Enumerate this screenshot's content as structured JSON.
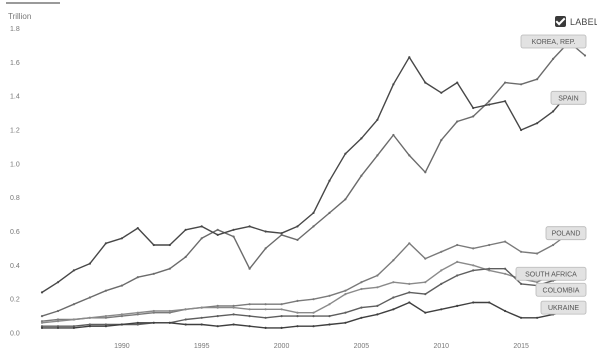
{
  "ui": {
    "unit_label": "Trillion",
    "label_toggle": {
      "text": "LABEL",
      "checked": true
    }
  },
  "chart_data": {
    "type": "line",
    "title": "",
    "xlabel": "",
    "ylabel": "",
    "xlim": [
      1985,
      2019
    ],
    "ylim": [
      0,
      1.85
    ],
    "grid": false,
    "y_ticks": [
      0.0,
      0.2,
      0.4,
      0.6,
      0.8,
      1.0,
      1.2,
      1.4,
      1.6,
      1.8
    ],
    "y_tick_labels": [
      "0.0",
      "0.2",
      "0.4",
      "0.6",
      "0.8",
      "1.0",
      "1.2",
      "1.4",
      "1.6",
      "1.8"
    ],
    "x_ticks": [
      1990,
      1995,
      2000,
      2005,
      2010,
      2015
    ],
    "x_tick_labels": [
      "1990",
      "1995",
      "2000",
      "2005",
      "2010",
      "2015"
    ],
    "x": [
      1985,
      1986,
      1987,
      1988,
      1989,
      1990,
      1991,
      1992,
      1993,
      1994,
      1995,
      1996,
      1997,
      1998,
      1999,
      2000,
      2001,
      2002,
      2003,
      2004,
      2005,
      2006,
      2007,
      2008,
      2009,
      2010,
      2011,
      2012,
      2013,
      2014,
      2015,
      2016,
      2017,
      2018,
      2019
    ],
    "series": [
      {
        "name": "KOREA, REP.",
        "color": "#6b6b6b",
        "values": [
          0.1,
          0.13,
          0.17,
          0.21,
          0.25,
          0.28,
          0.33,
          0.35,
          0.38,
          0.45,
          0.56,
          0.61,
          0.57,
          0.38,
          0.5,
          0.58,
          0.55,
          0.63,
          0.71,
          0.79,
          0.93,
          1.05,
          1.17,
          1.05,
          0.95,
          1.14,
          1.25,
          1.28,
          1.37,
          1.48,
          1.47,
          1.5,
          1.62,
          1.72,
          1.64
        ]
      },
      {
        "name": "SPAIN",
        "color": "#474747",
        "values": [
          0.24,
          0.3,
          0.37,
          0.41,
          0.53,
          0.56,
          0.62,
          0.52,
          0.52,
          0.61,
          0.63,
          0.58,
          0.61,
          0.63,
          0.6,
          0.59,
          0.63,
          0.71,
          0.9,
          1.06,
          1.15,
          1.26,
          1.47,
          1.63,
          1.48,
          1.42,
          1.48,
          1.33,
          1.35,
          1.37,
          1.2,
          1.24,
          1.31,
          1.42,
          1.39
        ]
      },
      {
        "name": "POLAND",
        "color": "#7a7a7a",
        "values": [
          0.07,
          0.08,
          0.08,
          0.09,
          0.09,
          0.1,
          0.11,
          0.12,
          0.12,
          0.14,
          0.15,
          0.16,
          0.16,
          0.17,
          0.17,
          0.17,
          0.19,
          0.2,
          0.22,
          0.25,
          0.3,
          0.34,
          0.43,
          0.53,
          0.44,
          0.48,
          0.52,
          0.5,
          0.52,
          0.54,
          0.48,
          0.47,
          0.52,
          0.59,
          0.59
        ]
      },
      {
        "name": "SOUTH AFRICA",
        "color": "#8a8a8a",
        "values": [
          0.06,
          0.07,
          0.08,
          0.09,
          0.1,
          0.11,
          0.12,
          0.13,
          0.13,
          0.14,
          0.15,
          0.15,
          0.15,
          0.14,
          0.14,
          0.14,
          0.12,
          0.12,
          0.17,
          0.23,
          0.26,
          0.27,
          0.3,
          0.29,
          0.3,
          0.37,
          0.42,
          0.4,
          0.37,
          0.35,
          0.32,
          0.3,
          0.35,
          0.37,
          0.35
        ]
      },
      {
        "name": "COLOMBIA",
        "color": "#5e5e5e",
        "values": [
          0.04,
          0.04,
          0.04,
          0.05,
          0.05,
          0.05,
          0.05,
          0.06,
          0.06,
          0.08,
          0.09,
          0.1,
          0.11,
          0.1,
          0.09,
          0.1,
          0.1,
          0.1,
          0.1,
          0.12,
          0.15,
          0.16,
          0.21,
          0.24,
          0.23,
          0.29,
          0.34,
          0.37,
          0.38,
          0.38,
          0.29,
          0.28,
          0.31,
          0.33,
          0.32
        ]
      },
      {
        "name": "UKRAINE",
        "color": "#3f3f3f",
        "values": [
          0.03,
          0.03,
          0.03,
          0.04,
          0.04,
          0.05,
          0.06,
          0.06,
          0.06,
          0.05,
          0.05,
          0.04,
          0.05,
          0.04,
          0.03,
          0.03,
          0.04,
          0.04,
          0.05,
          0.06,
          0.09,
          0.11,
          0.14,
          0.18,
          0.12,
          0.14,
          0.16,
          0.18,
          0.18,
          0.13,
          0.09,
          0.09,
          0.11,
          0.13,
          0.15
        ]
      }
    ],
    "labels": {
      "visible": true,
      "placement": "right",
      "entries": [
        "KOREA, REP.",
        "SPAIN",
        "POLAND",
        "SOUTH AFRICA",
        "COLOMBIA",
        "UKRAINE"
      ]
    }
  }
}
